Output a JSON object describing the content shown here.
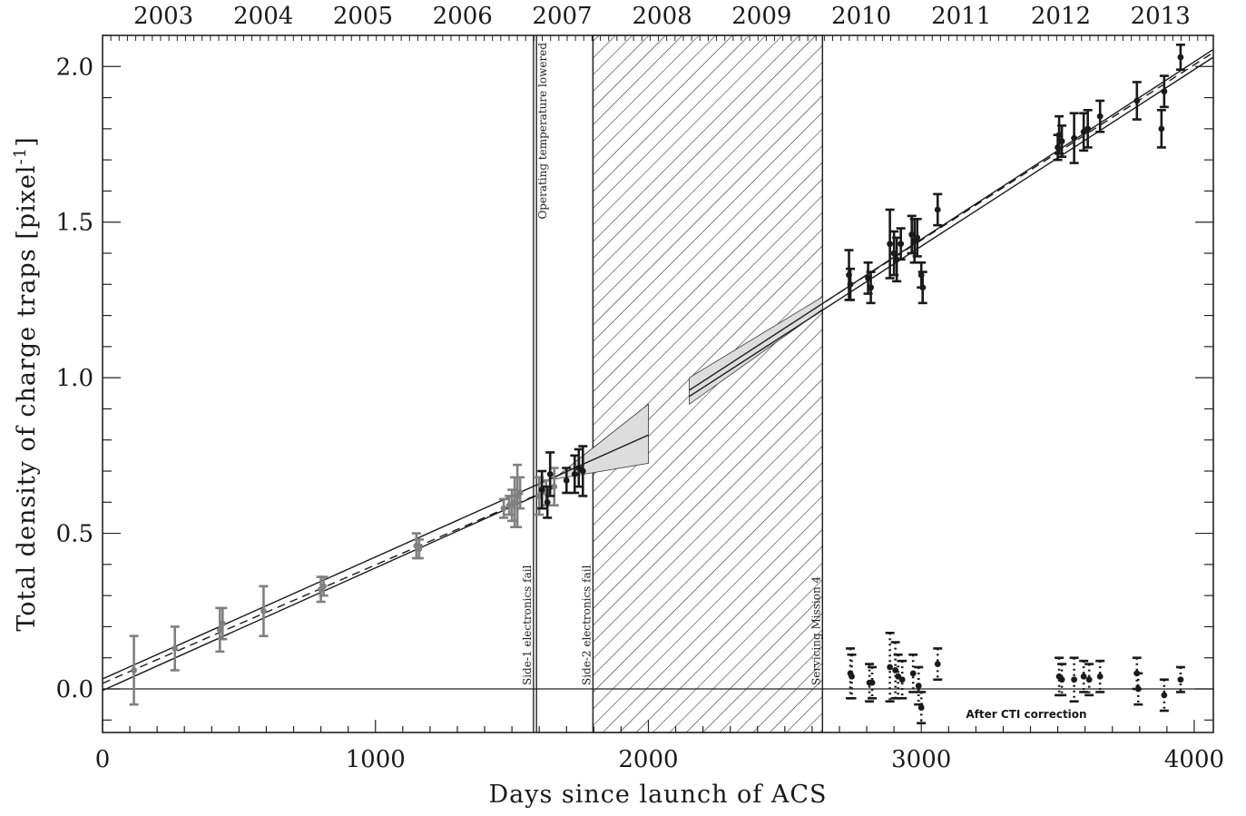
{
  "chart_data": {
    "type": "scatter",
    "xlabel": "Days since launch of ACS",
    "ylabel_main": "Total density of charge traps [pixel",
    "ylabel_sup": "-1",
    "ylabel_end": "]",
    "xlim": [
      0,
      4070
    ],
    "ylim": [
      -0.14,
      2.1
    ],
    "x_ticks": [
      0,
      1000,
      2000,
      3000,
      4000
    ],
    "x_tick_labels": [
      "0",
      "1000",
      "2000",
      "3000",
      "4000"
    ],
    "y_ticks": [
      0.0,
      0.5,
      1.0,
      1.5,
      2.0
    ],
    "y_tick_labels": [
      "0.0",
      "0.5",
      "1.0",
      "1.5",
      "2.0"
    ],
    "top_axis": {
      "label_days": [
        323,
        689,
        1054,
        1419,
        1784,
        2150,
        2515,
        2880,
        3246,
        3611,
        3976
      ],
      "labels": [
        "2003",
        "2004",
        "2005",
        "2006",
        "2007",
        "2008",
        "2009",
        "2010",
        "2011",
        "2012",
        "2013"
      ]
    },
    "zero_line": 0,
    "events": [
      {
        "day": 1579,
        "label": "Side-1 electronics fail"
      },
      {
        "day": 1590,
        "label": "Operating temperature lowered"
      },
      {
        "day": 1797,
        "label": "Side-2 electronics fail"
      },
      {
        "day": 2638,
        "label": "Servicing Mission 4"
      }
    ],
    "hatched_region": [
      1797,
      2638
    ],
    "note": "After CTI correction",
    "fits": [
      {
        "style": "solid",
        "x": [
          0,
          2000
        ],
        "y": [
          0.032,
          0.816
        ]
      },
      {
        "style": "solid",
        "x": [
          0,
          1650
        ],
        "y": [
          -0.005,
          0.645
        ]
      },
      {
        "style": "dashed",
        "x": [
          0,
          1590
        ],
        "y": [
          0.018,
          0.623
        ]
      },
      {
        "style": "solid",
        "x": [
          2150,
          4070
        ],
        "y": [
          0.96,
          2.055
        ]
      },
      {
        "style": "solid",
        "x": [
          2150,
          4070
        ],
        "y": [
          0.94,
          2.03
        ]
      },
      {
        "style": "dashed",
        "x": [
          2650,
          4070
        ],
        "y": [
          1.245,
          2.045
        ]
      }
    ],
    "fit_bands": [
      {
        "x": [
          1650,
          2000
        ],
        "upper": [
          0.673,
          0.915
        ],
        "lower": [
          0.673,
          0.725
        ]
      },
      {
        "x": [
          2150,
          2638
        ],
        "upper": [
          1.0,
          1.26
        ],
        "lower": [
          0.915,
          1.22
        ]
      }
    ],
    "series": [
      {
        "name": "",
        "color": "#808080",
        "points": [
          {
            "x": 115,
            "y": 0.06,
            "err": 0.11
          },
          {
            "x": 265,
            "y": 0.13,
            "err": 0.07
          },
          {
            "x": 430,
            "y": 0.19,
            "err": 0.07
          },
          {
            "x": 440,
            "y": 0.21,
            "err": 0.05
          },
          {
            "x": 590,
            "y": 0.25,
            "err": 0.08
          },
          {
            "x": 800,
            "y": 0.32,
            "err": 0.04
          },
          {
            "x": 810,
            "y": 0.33,
            "err": 0.03
          },
          {
            "x": 1150,
            "y": 0.46,
            "err": 0.04
          },
          {
            "x": 1160,
            "y": 0.45,
            "err": 0.03
          },
          {
            "x": 1470,
            "y": 0.58,
            "err": 0.03
          },
          {
            "x": 1490,
            "y": 0.59,
            "err": 0.03
          },
          {
            "x": 1500,
            "y": 0.59,
            "err": 0.05
          },
          {
            "x": 1510,
            "y": 0.6,
            "err": 0.08
          },
          {
            "x": 1520,
            "y": 0.62,
            "err": 0.1
          },
          {
            "x": 1530,
            "y": 0.63,
            "err": 0.05
          },
          {
            "x": 1600,
            "y": 0.62,
            "err": 0.06
          },
          {
            "x": 1625,
            "y": 0.63,
            "err": 0.04
          },
          {
            "x": 1655,
            "y": 0.65,
            "err": 0.06
          }
        ]
      },
      {
        "name": "",
        "color": "#1a1a1a",
        "points": [
          {
            "x": 1610,
            "y": 0.64,
            "err": 0.06
          },
          {
            "x": 1630,
            "y": 0.6,
            "err": 0.05
          },
          {
            "x": 1640,
            "y": 0.69,
            "err": 0.07
          },
          {
            "x": 1700,
            "y": 0.67,
            "err": 0.04
          },
          {
            "x": 1730,
            "y": 0.69,
            "err": 0.06
          },
          {
            "x": 1745,
            "y": 0.71,
            "err": 0.06
          },
          {
            "x": 1760,
            "y": 0.7,
            "err": 0.08
          },
          {
            "x": 2735,
            "y": 1.33,
            "err": 0.08
          },
          {
            "x": 2740,
            "y": 1.3,
            "err": 0.05
          },
          {
            "x": 2805,
            "y": 1.32,
            "err": 0.05
          },
          {
            "x": 2815,
            "y": 1.29,
            "err": 0.05
          },
          {
            "x": 2885,
            "y": 1.43,
            "err": 0.11
          },
          {
            "x": 2900,
            "y": 1.4,
            "err": 0.07
          },
          {
            "x": 2910,
            "y": 1.38,
            "err": 0.07
          },
          {
            "x": 2925,
            "y": 1.43,
            "err": 0.05
          },
          {
            "x": 2965,
            "y": 1.46,
            "err": 0.06
          },
          {
            "x": 2975,
            "y": 1.44,
            "err": 0.07
          },
          {
            "x": 2985,
            "y": 1.45,
            "err": 0.06
          },
          {
            "x": 3000,
            "y": 1.33,
            "err": 0.04
          },
          {
            "x": 3005,
            "y": 1.29,
            "err": 0.05
          },
          {
            "x": 3060,
            "y": 1.54,
            "err": 0.05
          },
          {
            "x": 3500,
            "y": 1.74,
            "err": 0.04
          },
          {
            "x": 3505,
            "y": 1.78,
            "err": 0.06
          },
          {
            "x": 3515,
            "y": 1.76,
            "err": 0.05
          },
          {
            "x": 3560,
            "y": 1.77,
            "err": 0.08
          },
          {
            "x": 3595,
            "y": 1.79,
            "err": 0.06
          },
          {
            "x": 3610,
            "y": 1.8,
            "err": 0.06
          },
          {
            "x": 3655,
            "y": 1.84,
            "err": 0.05
          },
          {
            "x": 3790,
            "y": 1.89,
            "err": 0.06
          },
          {
            "x": 3880,
            "y": 1.8,
            "err": 0.06
          },
          {
            "x": 3890,
            "y": 1.92,
            "err": 0.05
          },
          {
            "x": 3950,
            "y": 2.03,
            "err": 0.04
          }
        ]
      },
      {
        "name": "",
        "color": "#1a1a1a",
        "dotted_errors": true,
        "points": [
          {
            "x": 2740,
            "y": 0.05,
            "err": 0.08
          },
          {
            "x": 2745,
            "y": 0.04,
            "err": 0.07
          },
          {
            "x": 2810,
            "y": 0.02,
            "err": 0.06
          },
          {
            "x": 2820,
            "y": 0.02,
            "err": 0.05
          },
          {
            "x": 2885,
            "y": 0.07,
            "err": 0.11
          },
          {
            "x": 2905,
            "y": 0.06,
            "err": 0.09
          },
          {
            "x": 2915,
            "y": 0.04,
            "err": 0.07
          },
          {
            "x": 2930,
            "y": 0.03,
            "err": 0.06
          },
          {
            "x": 2970,
            "y": 0.05,
            "err": 0.06
          },
          {
            "x": 2990,
            "y": 0.01,
            "err": 0.06
          },
          {
            "x": 3000,
            "y": -0.06,
            "err": 0.05
          },
          {
            "x": 3060,
            "y": 0.08,
            "err": 0.05
          },
          {
            "x": 3505,
            "y": 0.04,
            "err": 0.06
          },
          {
            "x": 3515,
            "y": 0.03,
            "err": 0.05
          },
          {
            "x": 3560,
            "y": 0.03,
            "err": 0.07
          },
          {
            "x": 3595,
            "y": 0.04,
            "err": 0.05
          },
          {
            "x": 3615,
            "y": 0.03,
            "err": 0.05
          },
          {
            "x": 3655,
            "y": 0.04,
            "err": 0.05
          },
          {
            "x": 3790,
            "y": 0.05,
            "err": 0.05
          },
          {
            "x": 3795,
            "y": 0.0,
            "err": 0.05
          },
          {
            "x": 3890,
            "y": -0.02,
            "err": 0.05
          },
          {
            "x": 3950,
            "y": 0.03,
            "err": 0.04
          }
        ]
      }
    ]
  }
}
